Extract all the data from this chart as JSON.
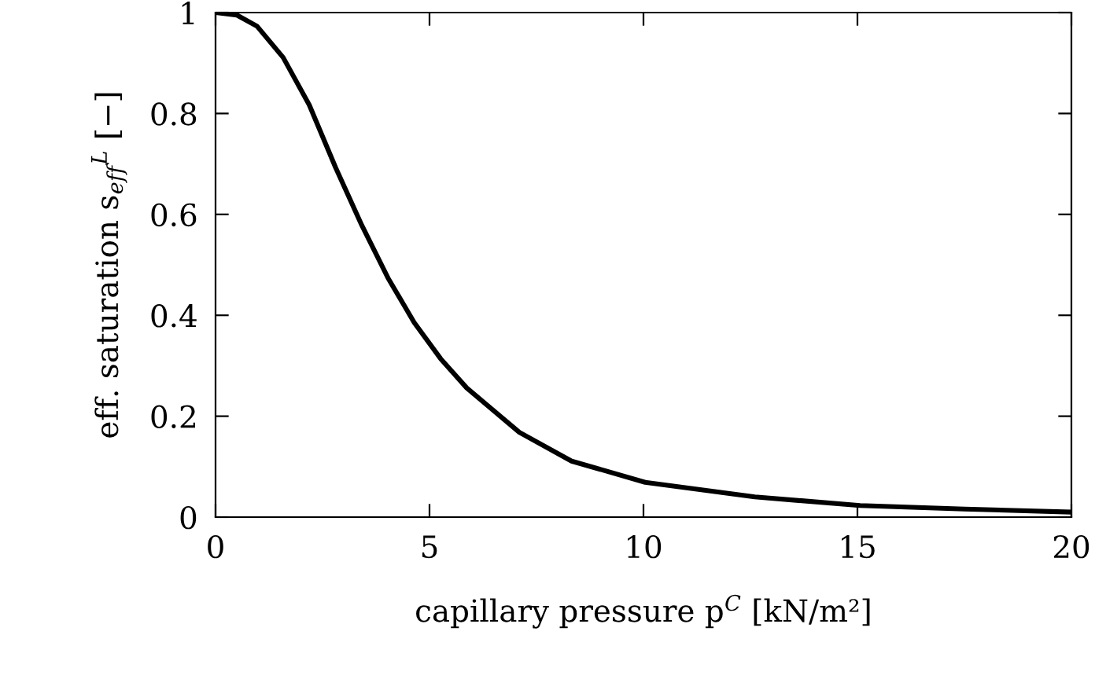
{
  "chart_data": {
    "type": "line",
    "xlabel": "capillary pressure p$^{C}$ [kN/m²]",
    "ylabel": "eff. saturation s$_{eff}$$^{L}$ [−]",
    "series": [
      {
        "color": "#000000",
        "x": [
          0,
          0.5,
          0.97,
          1.58,
          2.19,
          2.81,
          3.42,
          4.03,
          4.64,
          5.26,
          5.87,
          7.1,
          8.32,
          10.04,
          12.6,
          15.06,
          17.5,
          20
        ],
        "values": [
          1,
          0.995,
          0.973,
          0.911,
          0.817,
          0.692,
          0.578,
          0.474,
          0.386,
          0.314,
          0.256,
          0.168,
          0.111,
          0.069,
          0.04,
          0.023,
          0.016,
          0.01
        ]
      }
    ],
    "xlim": [
      0,
      20
    ],
    "ylim": [
      0,
      1
    ],
    "xticks": [
      0,
      5,
      10,
      15,
      20
    ],
    "yticks": [
      0,
      0.2,
      0.4,
      0.6,
      0.8,
      1
    ],
    "grid": false,
    "marker": "none",
    "line_style": "solid"
  }
}
